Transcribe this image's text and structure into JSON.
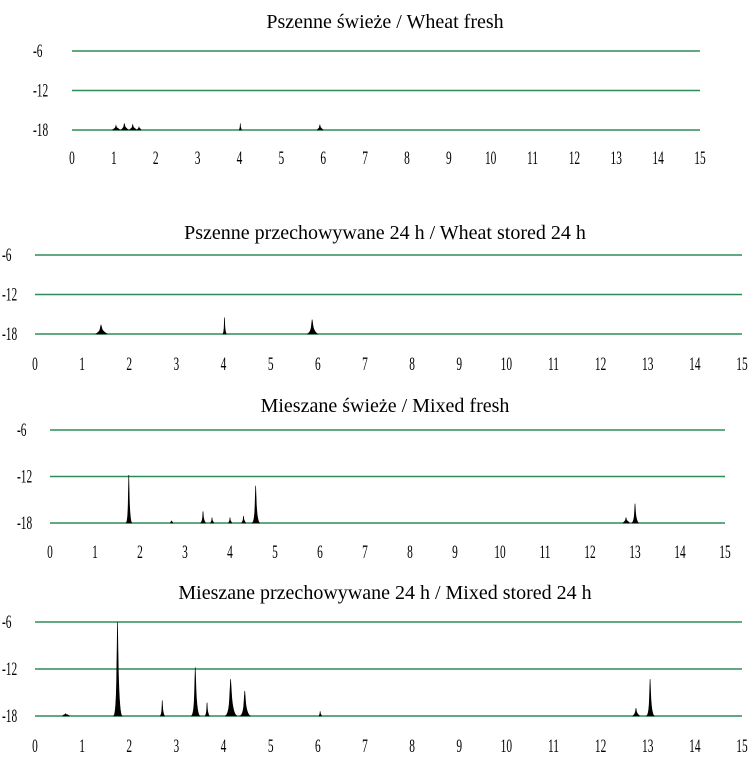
{
  "colors": {
    "gridline": "#2e8b57",
    "fill": "#000000",
    "text": "#000000"
  },
  "chart_data": [
    {
      "type": "area",
      "title": "Pszenne świeże / Wheat fresh",
      "xlim": [
        0,
        15
      ],
      "ylim": [
        -18,
        -6
      ],
      "y_ticks": [
        "-6",
        "-12",
        "-18"
      ],
      "x_ticks": [
        "0",
        "1",
        "2",
        "3",
        "4",
        "5",
        "6",
        "7",
        "8",
        "9",
        "10",
        "11",
        "12",
        "13",
        "14",
        "15"
      ],
      "grid": true,
      "peaks": [
        {
          "x": 1.05,
          "y": -17.3,
          "w": 0.1
        },
        {
          "x": 1.25,
          "y": -17.0,
          "w": 0.1
        },
        {
          "x": 1.45,
          "y": -17.2,
          "w": 0.1
        },
        {
          "x": 1.6,
          "y": -17.5,
          "w": 0.05
        },
        {
          "x": 4.02,
          "y": -17.0,
          "w": 0.03
        },
        {
          "x": 5.92,
          "y": -17.2,
          "w": 0.08
        }
      ]
    },
    {
      "type": "area",
      "title": "Pszenne przechowywane 24 h /  Wheat stored 24 h",
      "xlim": [
        0,
        15
      ],
      "ylim": [
        -18,
        -6
      ],
      "y_ticks": [
        "-6",
        "-12",
        "-18"
      ],
      "x_ticks": [
        "0",
        "1",
        "2",
        "3",
        "4",
        "5",
        "6",
        "7",
        "8",
        "9",
        "10",
        "11",
        "12",
        "13",
        "14",
        "15"
      ],
      "grid": true,
      "peaks": [
        {
          "x": 1.4,
          "y": -16.6,
          "w": 0.14
        },
        {
          "x": 4.02,
          "y": -15.5,
          "w": 0.04
        },
        {
          "x": 5.88,
          "y": -15.8,
          "w": 0.12
        }
      ]
    },
    {
      "type": "area",
      "title": "Mieszane świeże / Mixed fresh",
      "xlim": [
        0,
        15
      ],
      "ylim": [
        -18,
        -6
      ],
      "y_ticks": [
        "-6",
        "-12",
        "-18"
      ],
      "x_ticks": [
        "0",
        "1",
        "2",
        "3",
        "4",
        "5",
        "6",
        "7",
        "8",
        "9",
        "10",
        "11",
        "12",
        "13",
        "14",
        "15"
      ],
      "grid": true,
      "peaks": [
        {
          "x": 1.75,
          "y": -11.8,
          "w": 0.07
        },
        {
          "x": 2.7,
          "y": -17.7,
          "w": 0.03
        },
        {
          "x": 3.4,
          "y": -16.5,
          "w": 0.06
        },
        {
          "x": 3.6,
          "y": -17.3,
          "w": 0.04
        },
        {
          "x": 4.0,
          "y": -17.3,
          "w": 0.04
        },
        {
          "x": 4.3,
          "y": -17.1,
          "w": 0.05
        },
        {
          "x": 4.57,
          "y": -13.2,
          "w": 0.09
        },
        {
          "x": 12.8,
          "y": -17.3,
          "w": 0.08
        },
        {
          "x": 13.0,
          "y": -15.5,
          "w": 0.08
        }
      ]
    },
    {
      "type": "area",
      "title": "Mieszane przechowywane 24 h / Mixed stored 24 h",
      "xlim": [
        0,
        15
      ],
      "ylim": [
        -18,
        -6
      ],
      "y_ticks": [
        "-6",
        "-12",
        "-18"
      ],
      "x_ticks": [
        "0",
        "1",
        "2",
        "3",
        "4",
        "5",
        "6",
        "7",
        "8",
        "9",
        "10",
        "11",
        "12",
        "13",
        "14",
        "15"
      ],
      "grid": true,
      "peaks": [
        {
          "x": 0.65,
          "y": -17.7,
          "w": 0.08
        },
        {
          "x": 1.75,
          "y": -6.0,
          "w": 0.1
        },
        {
          "x": 2.7,
          "y": -16.0,
          "w": 0.05
        },
        {
          "x": 3.4,
          "y": -11.8,
          "w": 0.1
        },
        {
          "x": 3.65,
          "y": -16.3,
          "w": 0.05
        },
        {
          "x": 4.15,
          "y": -13.3,
          "w": 0.14
        },
        {
          "x": 4.45,
          "y": -14.8,
          "w": 0.12
        },
        {
          "x": 6.05,
          "y": -17.4,
          "w": 0.03
        },
        {
          "x": 12.75,
          "y": -17.0,
          "w": 0.08
        },
        {
          "x": 13.05,
          "y": -13.3,
          "w": 0.09
        }
      ]
    }
  ]
}
